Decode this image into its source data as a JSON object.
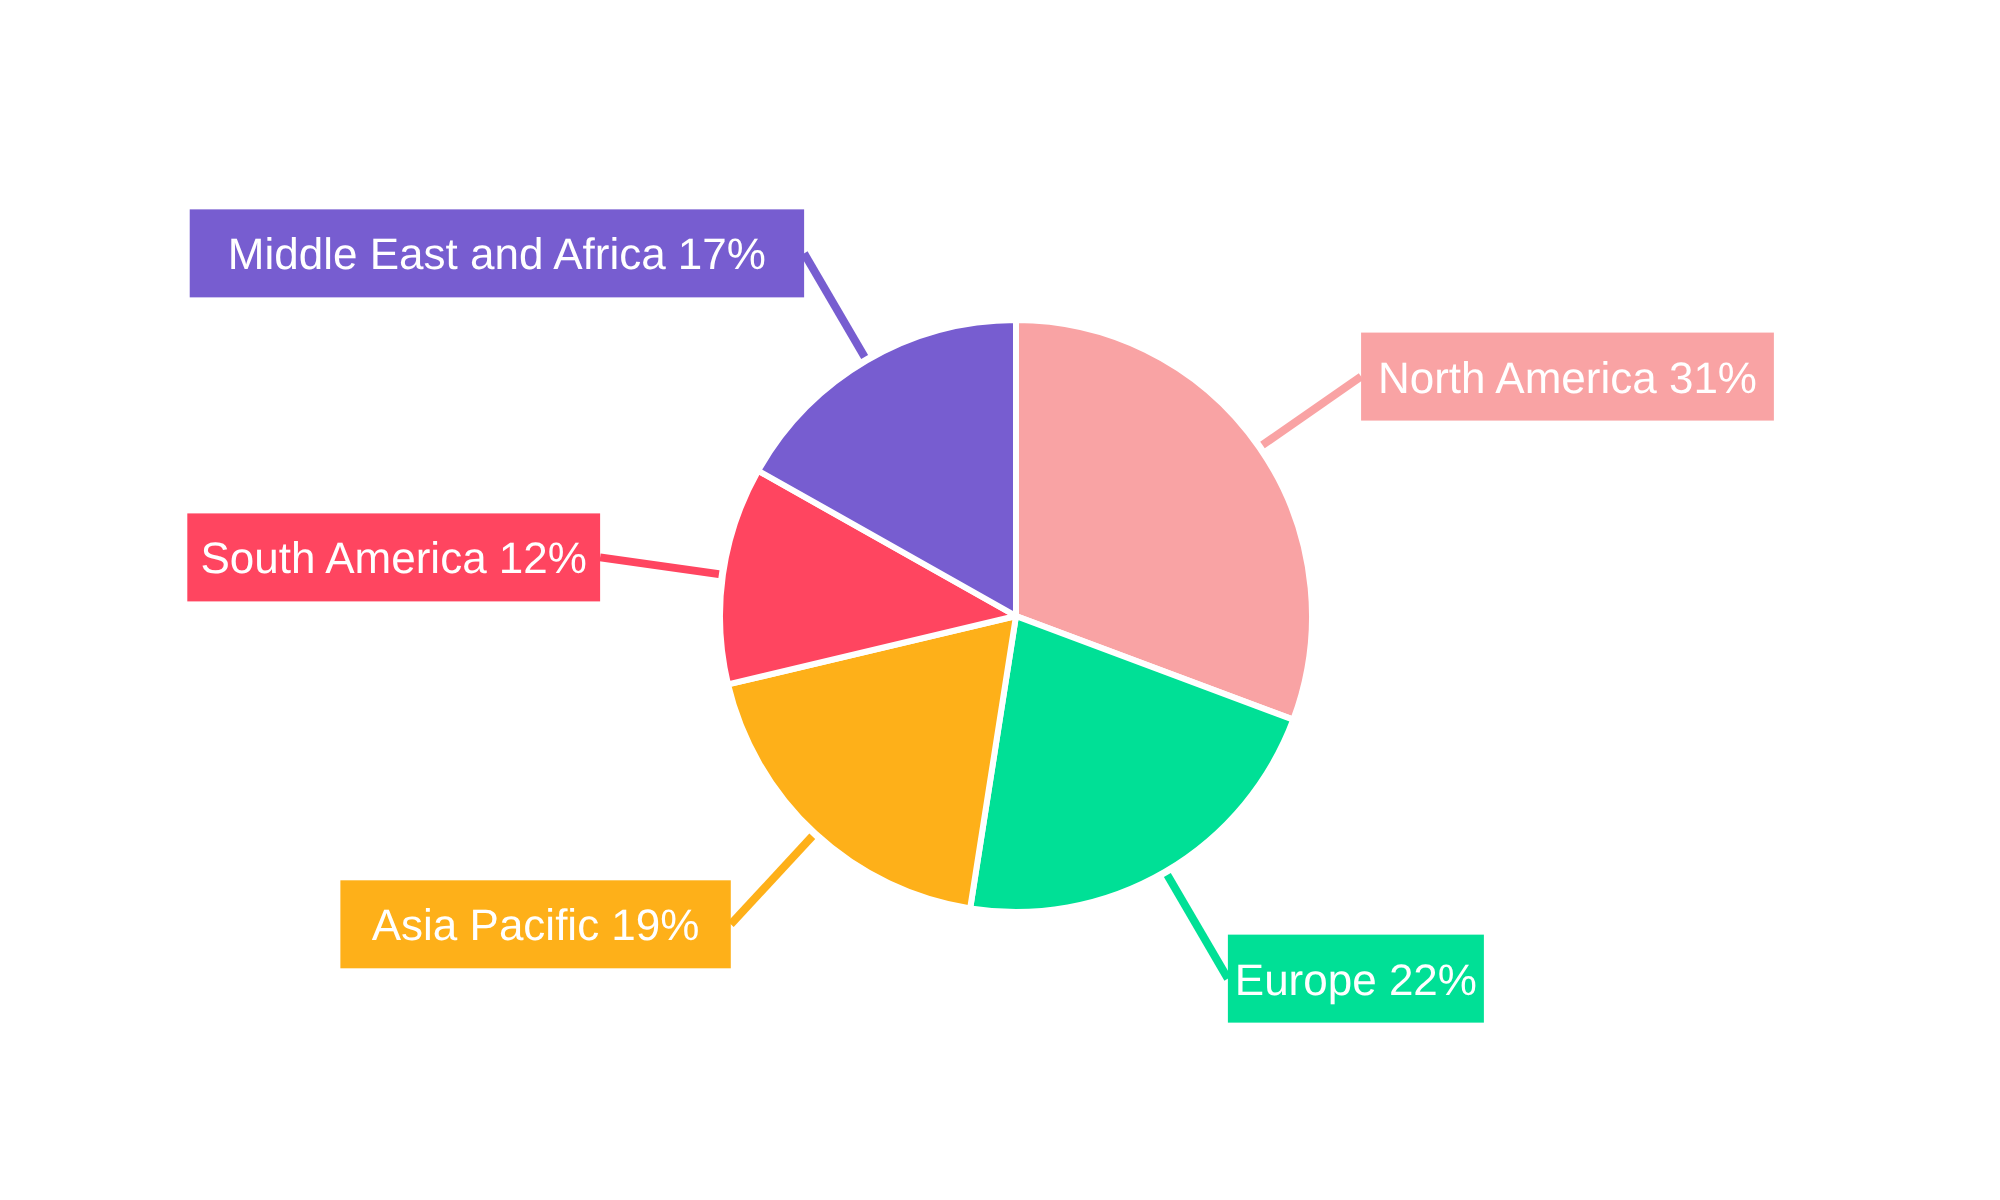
{
  "chart_data": {
    "type": "pie",
    "categories": [
      "North America",
      "Europe",
      "Asia Pacific",
      "South America",
      "Middle East and Africa"
    ],
    "values": [
      31,
      22,
      19,
      12,
      17
    ],
    "value_labels": [
      "31%",
      "22%",
      "19%",
      "12%",
      "17%"
    ],
    "colors": [
      "#f9a3a4",
      "#00e096",
      "#feb019",
      "#ff4560",
      "#775dd0"
    ]
  }
}
